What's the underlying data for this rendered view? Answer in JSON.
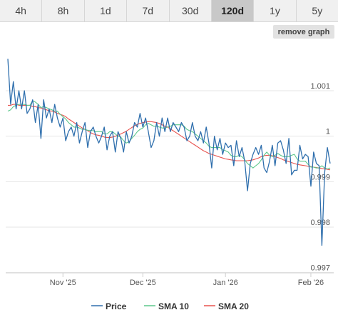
{
  "tabs": [
    {
      "label": "4h",
      "active": false
    },
    {
      "label": "8h",
      "active": false
    },
    {
      "label": "1d",
      "active": false
    },
    {
      "label": "7d",
      "active": false
    },
    {
      "label": "30d",
      "active": false
    },
    {
      "label": "120d",
      "active": true
    },
    {
      "label": "1y",
      "active": false
    },
    {
      "label": "5y",
      "active": false
    }
  ],
  "remove_graph_label": "remove graph",
  "chart_data": {
    "type": "line",
    "x_ticks": [
      "Nov '25",
      "Dec '25",
      "Jan '26",
      "Feb '26"
    ],
    "y_ticks": [
      0.997,
      0.998,
      0.999,
      1,
      1.001
    ],
    "y_tick_labels": [
      "0.997",
      "0.998",
      "0.999",
      "1",
      "1.001"
    ],
    "ylim": [
      0.9969,
      1.0018
    ],
    "grid": true,
    "legend_position": "bottom",
    "series": [
      {
        "name": "Price",
        "color": "#2f6fad",
        "values": [
          1.0017,
          1.0007,
          1.0012,
          1.0006,
          1.001,
          1.0006,
          1.001,
          1.0005,
          1.0006,
          1.0008,
          1.0003,
          1.0007,
          0.99995,
          1.0008,
          1.0004,
          1.0006,
          1.0003,
          1.0007,
          1.0004,
          1.0002,
          1.0004,
          0.9999,
          1.0001,
          1.0002,
          1.0,
          1.0003,
          0.99985,
          1.0001,
          1.0003,
          0.99975,
          1.0001,
          1.0002,
          1.0,
          0.99985,
          1.0,
          1.0002,
          0.9997,
          1.0,
          1.0001,
          0.99965,
          1.0001,
          0.99995,
          0.99965,
          1.0001,
          0.99985,
          1.0,
          1.0003,
          1.0002,
          1.0005,
          1.0002,
          1.0004,
          1.0001,
          0.99975,
          0.9999,
          1.0003,
          1.0,
          1.0004,
          1.0001,
          1.0004,
          1.0001,
          1.0003,
          1.0002,
          1.0001,
          1.0003,
          1.0002,
          0.9999,
          1.0,
          1.0003,
          1.0,
          0.9999,
          1.0001,
          0.99985,
          1.0002,
          0.99985,
          0.9993,
          1.0,
          0.9997,
          0.99995,
          0.9996,
          0.99985,
          0.99975,
          0.9998,
          0.99935,
          0.9999,
          0.99955,
          0.99975,
          0.99945,
          0.9988,
          0.9994,
          0.9996,
          0.99975,
          0.9996,
          0.9998,
          0.9993,
          0.9992,
          0.99945,
          0.9998,
          0.99935,
          0.99985,
          0.9999,
          0.9997,
          0.9994,
          0.99995,
          0.99915,
          0.99925,
          0.99925,
          0.9998,
          0.9995,
          0.9996,
          0.99955,
          0.9989,
          0.99965,
          0.9994,
          0.99935,
          0.9976,
          0.9992,
          0.99975,
          0.9994
        ]
      },
      {
        "name": "SMA 10",
        "color": "#5cc78b",
        "values": [
          1.00055,
          1.00058,
          1.00065,
          1.00068,
          1.0007,
          1.0007,
          1.0007,
          1.00068,
          1.00068,
          1.00078,
          1.00075,
          1.0007,
          1.00063,
          1.00065,
          1.00063,
          1.0006,
          1.00058,
          1.00055,
          1.00055,
          1.00048,
          1.00043,
          1.00038,
          1.0003,
          1.00025,
          1.0002,
          1.0002,
          1.00018,
          1.00015,
          1.00015,
          1.00013,
          1.00013,
          1.00012,
          1.0001,
          1.0001,
          1.0001,
          1.00005,
          1.00005,
          1.0001,
          1.0001,
          1.00005,
          1.0,
          0.99998,
          0.9999,
          0.99985,
          0.99988,
          0.99995,
          1.00002,
          1.0001,
          1.00015,
          1.00018,
          1.00025,
          1.00028,
          1.00025,
          1.00022,
          1.00022,
          1.0002,
          1.00018,
          1.00018,
          1.0002,
          1.00022,
          1.00025,
          1.00025,
          1.00025,
          1.00025,
          1.00022,
          1.00015,
          1.00012,
          1.0001,
          1.00005,
          1.0,
          0.99995,
          0.9999,
          0.99985,
          0.99978,
          0.99975,
          0.99975,
          0.99975,
          0.99975,
          0.9997,
          0.99968,
          0.99965,
          0.99958,
          0.99955,
          0.99955,
          0.99958,
          0.99955,
          0.99948,
          0.9994,
          0.99935,
          0.9993,
          0.99935,
          0.9994,
          0.99948,
          0.99958,
          0.99965,
          0.99958,
          0.99955,
          0.99958,
          0.99962,
          0.99958,
          0.99955,
          0.99955,
          0.99955,
          0.99958,
          0.9996,
          0.9995,
          0.99945,
          0.99945,
          0.99945,
          0.99938,
          0.99932,
          0.99932,
          0.9993,
          0.9993,
          0.99935,
          0.9993,
          0.99928,
          0.9993
        ]
      },
      {
        "name": "SMA 20",
        "color": "#e8534f",
        "values": [
          1.00068,
          1.00068,
          1.0007,
          1.0007,
          1.00068,
          1.00068,
          1.00068,
          1.00068,
          1.00068,
          1.00065,
          1.00065,
          1.00063,
          1.00062,
          1.0006,
          1.00058,
          1.00056,
          1.00055,
          1.00053,
          1.0005,
          1.00048,
          1.00046,
          1.00043,
          1.00038,
          1.00034,
          1.0003,
          1.00026,
          1.00022,
          1.00018,
          1.00015,
          1.00012,
          1.00008,
          1.00005,
          1.00003,
          1.00002,
          1.0,
          0.99998,
          0.99997,
          0.99997,
          0.99998,
          1.0,
          1.00002,
          1.00005,
          1.00008,
          1.00011,
          1.00015,
          1.00019,
          1.00023,
          1.00026,
          1.00028,
          1.0003,
          1.00031,
          1.00032,
          1.00032,
          1.00031,
          1.0003,
          1.00028,
          1.00025,
          1.00022,
          1.0002,
          1.00016,
          1.00012,
          1.00008,
          1.00004,
          1.0,
          0.99996,
          0.99992,
          0.99988,
          0.99984,
          0.9998,
          0.99976,
          0.99972,
          0.99968,
          0.99965,
          0.99962,
          0.9996,
          0.99958,
          0.99956,
          0.99954,
          0.99952,
          0.9995,
          0.99949,
          0.99948,
          0.99947,
          0.99946,
          0.99946,
          0.99946,
          0.99946,
          0.99946,
          0.99947,
          0.99948,
          0.9995,
          0.99952,
          0.99955,
          0.99957,
          0.99958,
          0.99958,
          0.99957,
          0.99955,
          0.99953,
          0.99951,
          0.99948,
          0.99946,
          0.99944,
          0.99942,
          0.9994,
          0.99938,
          0.99937,
          0.99936,
          0.99935,
          0.99934,
          0.99933,
          0.99932,
          0.99931,
          0.9993,
          0.99929,
          0.99928,
          0.99927,
          0.99926
        ]
      }
    ]
  }
}
